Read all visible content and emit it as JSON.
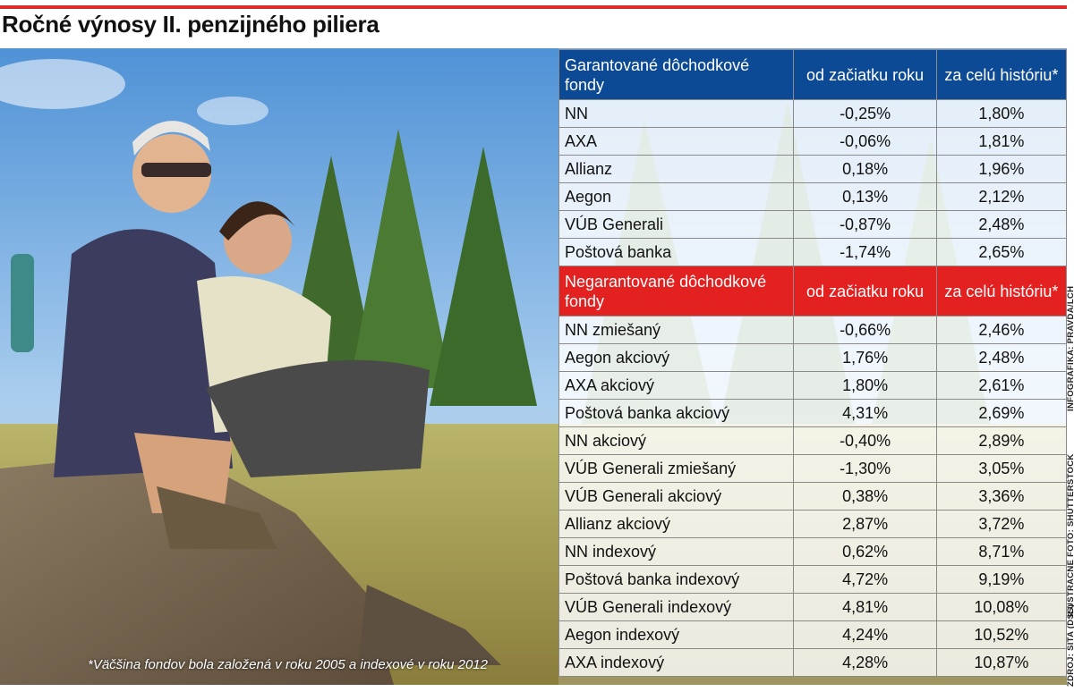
{
  "title": "Ročné výnosy II. penzijného piliera",
  "footnote": "*Väčšina fondov bola založená v roku 2005 a indexové v roku 2012",
  "credits": {
    "infographic": "INFOGRAFIKA: PRAVDA/LCH",
    "photo": "ILUSTRAČNÉ FOTO: SHUTTERSTOCK",
    "source": "ZDROJ: SITA (DSS)"
  },
  "colors": {
    "blue_header": "#0d4a96",
    "red_header": "#e32121",
    "rule": "#e32a2a"
  },
  "chart_data": {
    "type": "table",
    "title": "Ročné výnosy II. penzijného piliera",
    "sections": [
      {
        "name": "Garantované dôchodkové fondy",
        "columns": [
          "Garantované dôchodkové fondy",
          "od začiatku roku",
          "za celú históriu*"
        ],
        "rows": [
          [
            "NN",
            "-0,25%",
            "1,80%"
          ],
          [
            "AXA",
            "-0,06%",
            "1,81%"
          ],
          [
            "Allianz",
            "0,18%",
            "1,96%"
          ],
          [
            "Aegon",
            "0,13%",
            "2,12%"
          ],
          [
            "VÚB Generali",
            "-0,87%",
            "2,48%"
          ],
          [
            "Poštová banka",
            "-1,74%",
            "2,65%"
          ]
        ]
      },
      {
        "name": "Negarantované dôchodkové fondy",
        "columns": [
          "Negarantované dôchodkové fondy",
          "od začiatku roku",
          "za celú históriu*"
        ],
        "rows": [
          [
            "NN zmiešaný",
            "-0,66%",
            "2,46%"
          ],
          [
            "Aegon akciový",
            "1,76%",
            "2,48%"
          ],
          [
            "AXA akciový",
            "1,80%",
            "2,61%"
          ],
          [
            "Poštová banka akciový",
            "4,31%",
            "2,69%"
          ],
          [
            "NN akciový",
            "-0,40%",
            "2,89%"
          ],
          [
            "VÚB Generali zmiešaný",
            "-1,30%",
            "3,05%"
          ],
          [
            "VÚB Generali akciový",
            "0,38%",
            "3,36%"
          ],
          [
            "Allianz akciový",
            "2,87%",
            "3,72%"
          ],
          [
            "NN indexový",
            "0,62%",
            "8,71%"
          ],
          [
            "Poštová banka indexový",
            "4,72%",
            "9,19%"
          ],
          [
            "VÚB Generali indexový",
            "4,81%",
            "10,08%"
          ],
          [
            "Aegon indexový",
            "4,24%",
            "10,52%"
          ],
          [
            "AXA indexový",
            "4,28%",
            "10,87%"
          ]
        ]
      }
    ]
  }
}
